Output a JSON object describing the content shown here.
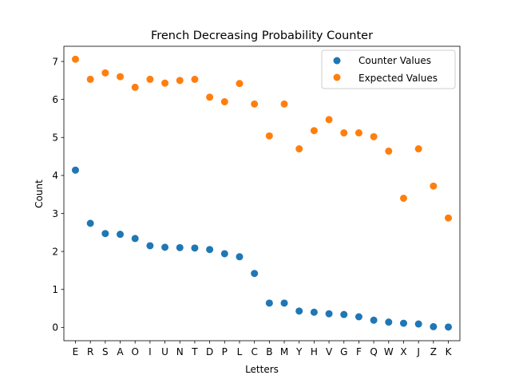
{
  "chart_data": {
    "type": "scatter",
    "title": "French Decreasing Probability Counter",
    "xlabel": "Letters",
    "ylabel": "Count",
    "categories": [
      "E",
      "R",
      "S",
      "A",
      "O",
      "I",
      "U",
      "N",
      "T",
      "D",
      "P",
      "L",
      "C",
      "B",
      "M",
      "Y",
      "H",
      "V",
      "G",
      "F",
      "Q",
      "W",
      "X",
      "J",
      "Z",
      "K"
    ],
    "ylim": [
      -0.35,
      7.4
    ],
    "yticks": [
      0,
      1,
      2,
      3,
      4,
      5,
      6,
      7
    ],
    "grid": false,
    "legend_position": "upper right",
    "series": [
      {
        "name": "Counter Values",
        "color": "#1f77b4",
        "values": [
          4.14,
          2.74,
          2.47,
          2.45,
          2.34,
          2.15,
          2.11,
          2.1,
          2.09,
          2.05,
          1.94,
          1.86,
          1.42,
          0.64,
          0.64,
          0.43,
          0.4,
          0.36,
          0.34,
          0.28,
          0.19,
          0.14,
          0.11,
          0.09,
          0.02,
          0.01
        ]
      },
      {
        "name": "Expected Values",
        "color": "#ff7f0e",
        "values": [
          7.06,
          6.53,
          6.7,
          6.6,
          6.32,
          6.53,
          6.43,
          6.5,
          6.53,
          6.06,
          5.94,
          6.42,
          5.88,
          5.04,
          5.88,
          4.7,
          5.18,
          5.47,
          5.12,
          5.12,
          5.02,
          4.64,
          3.4,
          4.7,
          3.72,
          2.88
        ]
      }
    ]
  }
}
